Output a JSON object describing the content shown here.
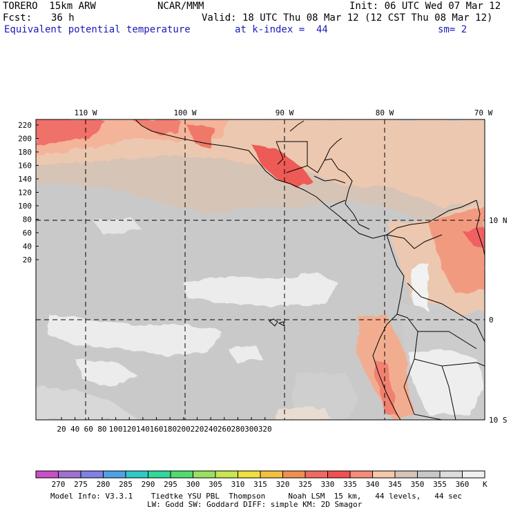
{
  "header": {
    "model": "TORERO  15km ARW",
    "org": "NCAR/MMM",
    "init": "Init: 06 UTC Wed 07 Mar 12",
    "fcst_label": "Fcst:",
    "fcst_value": "36 h",
    "valid": "Valid: 18 UTC Thu 08 Mar 12 (12 CST Thu 08 Mar 12)",
    "field": "Equivalent potential temperature",
    "level": "at k-index =  44",
    "smooth": "sm= 2"
  },
  "map": {
    "lon_labels": [
      "110 W",
      "100 W",
      "90 W",
      "80 W",
      "70 W"
    ],
    "lat_labels": [
      "10 N",
      "0",
      "10 S"
    ],
    "y_ticks": [
      "220",
      "200",
      "180",
      "160",
      "140",
      "120",
      "100",
      "80",
      "60",
      "40",
      "20"
    ],
    "x_ticks": [
      "20",
      "40",
      "60",
      "80",
      "100",
      "120",
      "140",
      "160",
      "180",
      "200",
      "220",
      "240",
      "260",
      "280",
      "300",
      "320"
    ]
  },
  "colorbar": {
    "unit": "K",
    "labels": [
      "270",
      "275",
      "280",
      "285",
      "290",
      "295",
      "300",
      "305",
      "310",
      "315",
      "320",
      "325",
      "330",
      "335",
      "340",
      "345",
      "350",
      "355",
      "360"
    ],
    "colors": [
      "#c84fc8",
      "#a070d0",
      "#8080e6",
      "#50a0e6",
      "#30c8c8",
      "#30d89a",
      "#50dc6e",
      "#98e060",
      "#c8e650",
      "#f0e040",
      "#f4c040",
      "#f09050",
      "#f06a60",
      "#f05050",
      "#f48c78",
      "#f6c8a8",
      "#d6c4b8",
      "#c8c8c8",
      "#dcdcdc",
      "#f0f0f0"
    ]
  },
  "footer": {
    "line1": "Model Info: V3.3.1    Tiedtke YSU PBL  Thompson     Noah LSM  15 km,   44 levels,   44 sec",
    "line2": "LW: Godd SW: Goddard DIFF: simple KM: 2D Smagor"
  }
}
